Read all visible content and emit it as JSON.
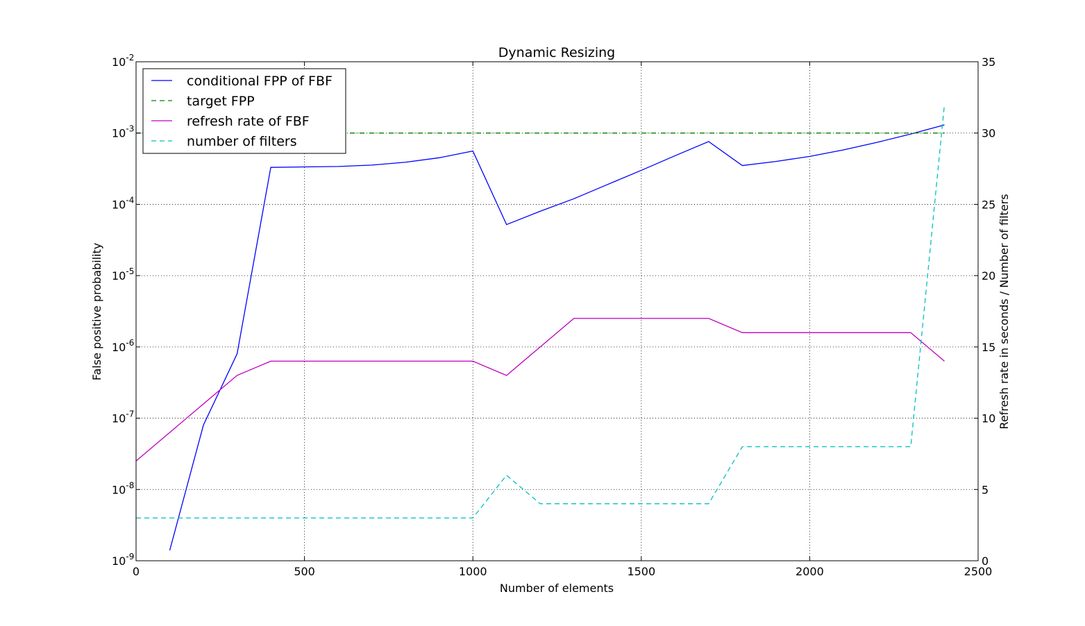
{
  "chart_data": {
    "type": "line",
    "title": "Dynamic Resizing",
    "xlabel": "Number of elements",
    "ylabel_left": "False positive probability",
    "ylabel_right": "Refresh rate in seconds / Number of filters",
    "xlim": [
      0,
      2500
    ],
    "ylim_left": [
      1e-09,
      0.01
    ],
    "yscale_left": "log",
    "ylim_right": [
      0,
      35
    ],
    "grid": true,
    "legend_position": "top-left",
    "x_ticks": [
      "0",
      "500",
      "1000",
      "1500",
      "2000",
      "2500"
    ],
    "y_left_ticks": [
      {
        "base": "10",
        "exp": "-9"
      },
      {
        "base": "10",
        "exp": "-8"
      },
      {
        "base": "10",
        "exp": "-7"
      },
      {
        "base": "10",
        "exp": "-6"
      },
      {
        "base": "10",
        "exp": "-5"
      },
      {
        "base": "10",
        "exp": "-4"
      },
      {
        "base": "10",
        "exp": "-3"
      },
      {
        "base": "10",
        "exp": "-2"
      }
    ],
    "y_right_ticks": [
      "0",
      "5",
      "10",
      "15",
      "20",
      "25",
      "30",
      "35"
    ],
    "series": [
      {
        "name": "conditional FPP of FBF",
        "axis": "left",
        "color": "#0000ff",
        "style": "solid",
        "x": [
          100,
          200,
          300,
          400,
          500,
          600,
          700,
          800,
          900,
          1000,
          1100,
          1200,
          1300,
          1400,
          1500,
          1600,
          1700,
          1800,
          1900,
          2000,
          2100,
          2200,
          2300,
          2400
        ],
        "y": [
          1.4e-09,
          8e-08,
          8e-07,
          0.00033,
          0.000335,
          0.00034,
          0.000355,
          0.00039,
          0.00045,
          0.00056,
          5.2e-05,
          8e-05,
          0.00012,
          0.00019,
          0.0003,
          0.00048,
          0.00076,
          0.00035,
          0.0004,
          0.00047,
          0.00058,
          0.00074,
          0.00097,
          0.0013
        ]
      },
      {
        "name": "target FPP",
        "axis": "left",
        "color": "#008000",
        "style": "dashed",
        "x": [
          0,
          2400
        ],
        "y": [
          0.001,
          0.001
        ]
      },
      {
        "name": "refresh rate of FBF",
        "axis": "right",
        "color": "#bf00bf",
        "style": "solid",
        "x": [
          0,
          100,
          200,
          300,
          400,
          500,
          600,
          700,
          800,
          900,
          1000,
          1100,
          1200,
          1300,
          1400,
          1500,
          1600,
          1700,
          1800,
          1900,
          2000,
          2100,
          2200,
          2300,
          2400
        ],
        "y": [
          7,
          9,
          11,
          13,
          14,
          14,
          14,
          14,
          14,
          14,
          14,
          13,
          15,
          17,
          17,
          17,
          17,
          17,
          16,
          16,
          16,
          16,
          16,
          16,
          14
        ]
      },
      {
        "name": "number of filters",
        "axis": "right",
        "color": "#00bfbf",
        "style": "dashed",
        "x": [
          0,
          100,
          200,
          300,
          400,
          500,
          600,
          700,
          800,
          900,
          1000,
          1100,
          1200,
          1300,
          1400,
          1500,
          1600,
          1700,
          1800,
          1900,
          2000,
          2100,
          2200,
          2300,
          2400
        ],
        "y": [
          3,
          3,
          3,
          3,
          3,
          3,
          3,
          3,
          3,
          3,
          3,
          6,
          4,
          4,
          4,
          4,
          4,
          4,
          8,
          8,
          8,
          8,
          8,
          8,
          32
        ]
      }
    ]
  }
}
